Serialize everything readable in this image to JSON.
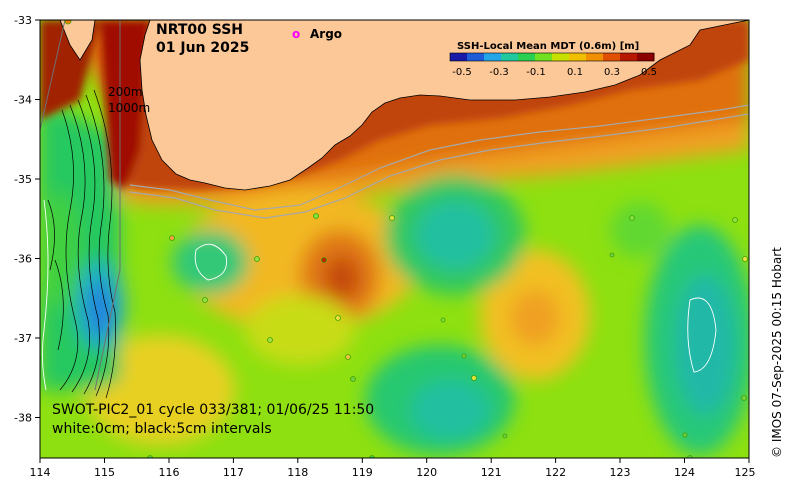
{
  "title": {
    "line1": "NRT00 SSH",
    "line2": "01 Jun 2025"
  },
  "legend": {
    "argo_marker": "o",
    "argo_label": "Argo",
    "argo_color": "#ff00ff"
  },
  "colorbar": {
    "title": "SSH-Local Mean MDT (0.6m) [m]",
    "ticks": [
      "-0.5",
      "-0.3",
      "-0.1",
      "0.1",
      "0.3",
      "0.5"
    ],
    "colors": [
      "#1a1aa8",
      "#1e5cd8",
      "#22a6e8",
      "#20c8a0",
      "#28d050",
      "#70e020",
      "#c8e000",
      "#f0c000",
      "#f09000",
      "#e05000",
      "#b81800",
      "#8c0000"
    ]
  },
  "contour_labels": {
    "shallow": "200m",
    "deep": "1000m"
  },
  "axes": {
    "x_ticks": [
      "114",
      "115",
      "116",
      "117",
      "118",
      "119",
      "120",
      "121",
      "122",
      "123",
      "124",
      "125"
    ],
    "y_ticks": [
      "-33",
      "-34",
      "-35",
      "-36",
      "-37",
      "-38"
    ]
  },
  "footer": {
    "line1": "SWOT-PIC2_01 cycle 033/381; 01/06/25 11:50",
    "line2": "white:0cm; black:5cm intervals"
  },
  "credit": "© IMOS 07-Sep-2025 00:15 Hobart",
  "colors": {
    "land": "#fcc898",
    "coast": "#000000",
    "isobath": "#a8a8a8"
  }
}
